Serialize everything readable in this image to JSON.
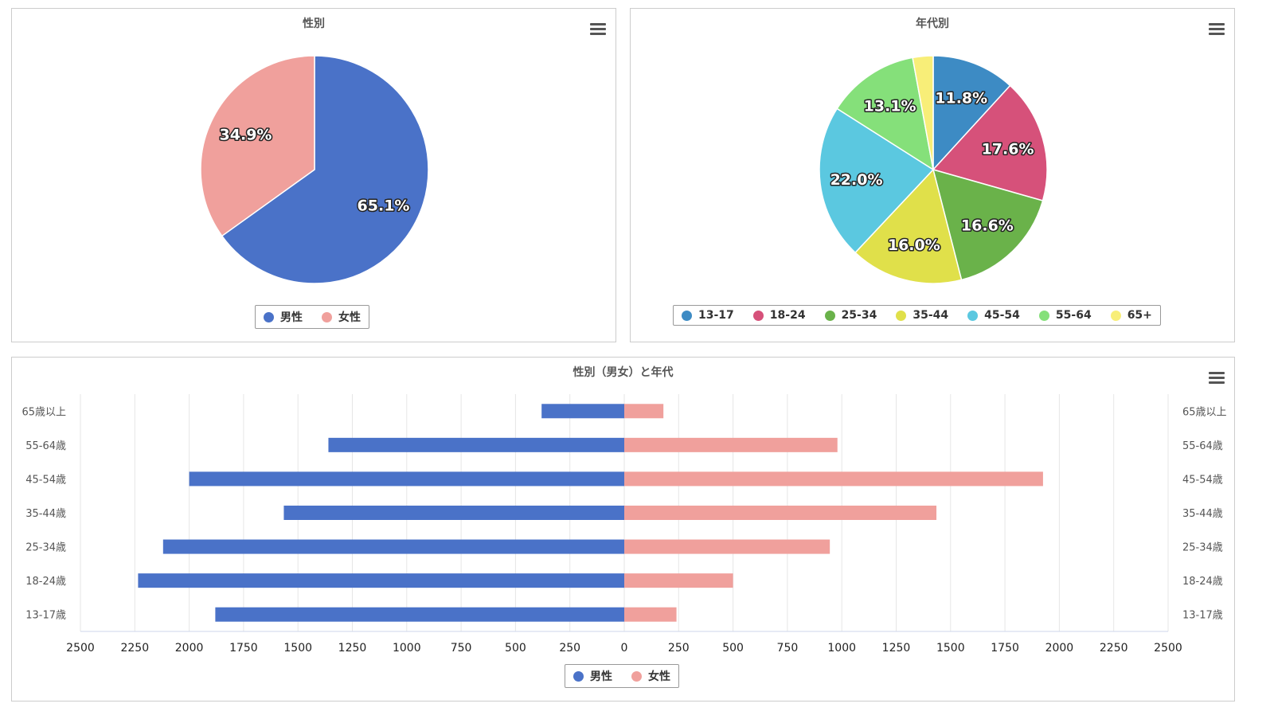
{
  "chart_data": [
    {
      "type": "pie",
      "title": "性別",
      "categories": [
        "男性",
        "女性"
      ],
      "values": [
        65.1,
        34.9
      ],
      "labels": [
        "65.1%",
        "34.9%"
      ],
      "colors": [
        "#4a72c8",
        "#f0a09c"
      ],
      "legend": "bottom"
    },
    {
      "type": "pie",
      "title": "年代別",
      "categories": [
        "13-17",
        "18-24",
        "25-34",
        "35-44",
        "45-54",
        "55-64",
        "65+"
      ],
      "values": [
        11.8,
        17.6,
        16.6,
        16.0,
        22.0,
        13.1,
        2.9
      ],
      "labels": [
        "11.8%",
        "17.6%",
        "16.6%",
        "16.0%",
        "22.0%",
        "13.1%",
        ""
      ],
      "colors": [
        "#3d8bc4",
        "#d6517a",
        "#6ab24a",
        "#e0e04a",
        "#5bc8e0",
        "#85e07a",
        "#f8ee78"
      ],
      "legend": "bottom"
    },
    {
      "type": "bar",
      "title": "性別（男女）と年代",
      "categories": [
        "65歳以上",
        "55-64歳",
        "45-54歳",
        "35-44歳",
        "25-34歳",
        "18-24歳",
        "13-17歳"
      ],
      "series": [
        {
          "name": "男性",
          "values": [
            380,
            1360,
            2000,
            1565,
            2120,
            2235,
            1880
          ],
          "color": "#4a72c8"
        },
        {
          "name": "女性",
          "values": [
            180,
            980,
            1925,
            1435,
            945,
            500,
            240
          ],
          "color": "#f0a09c"
        }
      ],
      "xlim": [
        -2500,
        2500
      ],
      "xticks": [
        "2500",
        "2250",
        "2000",
        "1750",
        "1500",
        "1250",
        "1000",
        "750",
        "500",
        "250",
        "0",
        "250",
        "500",
        "750",
        "1000",
        "1250",
        "1500",
        "1750",
        "2000",
        "2250",
        "2500"
      ],
      "grid": true,
      "legend": "bottom"
    }
  ]
}
